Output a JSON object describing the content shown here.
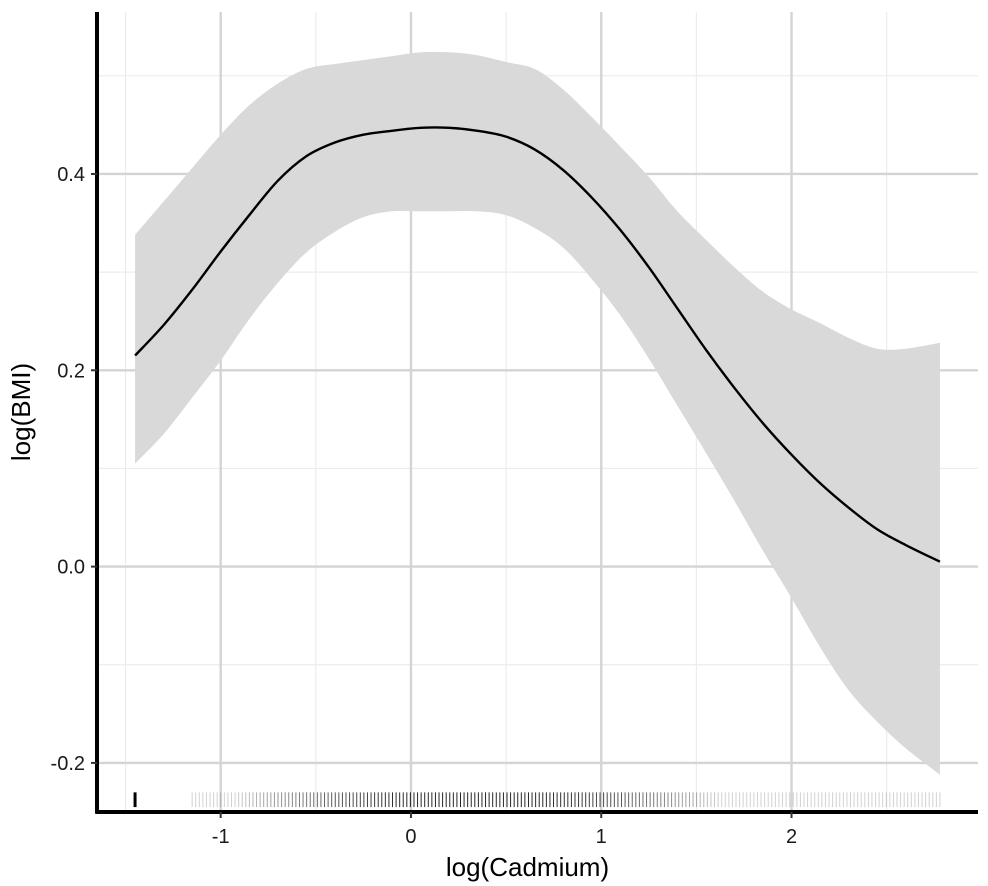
{
  "chart_data": {
    "type": "line",
    "title": "",
    "xlabel": "log(Cadmium)",
    "ylabel": "log(BMI)",
    "xlim": [
      -1.65,
      2.98
    ],
    "ylim": [
      -0.25,
      0.565
    ],
    "x_ticks": [
      -1,
      0,
      1,
      2
    ],
    "x_tick_labels": [
      "-1",
      "0",
      "1",
      "2"
    ],
    "y_ticks": [
      -0.2,
      0.0,
      0.2,
      0.4
    ],
    "y_tick_labels": [
      "-0.2",
      "0.0",
      "0.2",
      "0.4"
    ],
    "grid": true,
    "legend": "none",
    "colors": {
      "line": "#000000",
      "ribbon": "#d9d9d9",
      "grid_major": "#d4d4d4",
      "grid_minor": "#ececec",
      "axis": "#000000"
    },
    "series": [
      {
        "x": [
          -1.45,
          -1.3,
          -1.15,
          -1.0,
          -0.85,
          -0.7,
          -0.55,
          -0.4,
          -0.25,
          -0.1,
          0.05,
          0.2,
          0.35,
          0.5,
          0.65,
          0.8,
          0.95,
          1.1,
          1.25,
          1.4,
          1.55,
          1.7,
          1.85,
          2.0,
          2.15,
          2.3,
          2.45,
          2.6,
          2.78
        ],
        "y": [
          0.215,
          0.246,
          0.282,
          0.321,
          0.358,
          0.393,
          0.418,
          0.432,
          0.44,
          0.444,
          0.447,
          0.447,
          0.444,
          0.438,
          0.425,
          0.404,
          0.376,
          0.343,
          0.305,
          0.263,
          0.221,
          0.182,
          0.146,
          0.114,
          0.085,
          0.06,
          0.038,
          0.022,
          0.005
        ],
        "lower": [
          0.105,
          0.135,
          0.172,
          0.21,
          0.252,
          0.289,
          0.32,
          0.341,
          0.356,
          0.362,
          0.362,
          0.362,
          0.362,
          0.358,
          0.345,
          0.325,
          0.293,
          0.256,
          0.212,
          0.164,
          0.116,
          0.067,
          0.016,
          -0.032,
          -0.082,
          -0.126,
          -0.158,
          -0.185,
          -0.212
        ],
        "upper": [
          0.338,
          0.372,
          0.406,
          0.44,
          0.47,
          0.492,
          0.507,
          0.512,
          0.516,
          0.52,
          0.524,
          0.524,
          0.521,
          0.514,
          0.507,
          0.486,
          0.458,
          0.428,
          0.397,
          0.362,
          0.333,
          0.305,
          0.28,
          0.262,
          0.248,
          0.233,
          0.222,
          0.222,
          0.228
        ]
      }
    ],
    "rug": {
      "from": -1.15,
      "to": 2.78,
      "isolated": [
        -1.45
      ],
      "dense_center": 0.35,
      "dense_spread": 0.8
    }
  }
}
